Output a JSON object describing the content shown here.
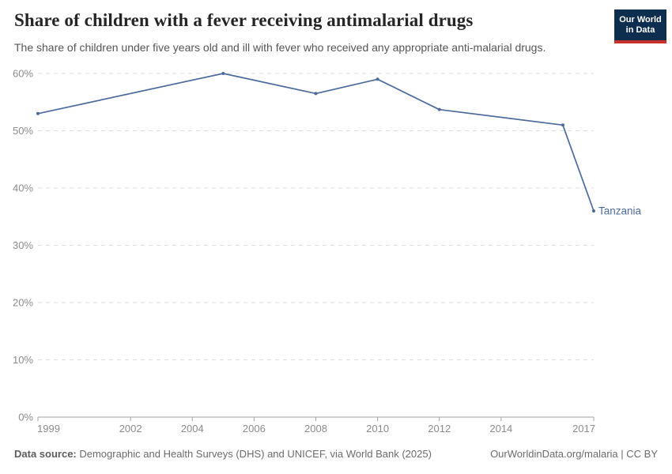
{
  "header": {
    "title": "Share of children with a fever receiving antimalarial drugs",
    "subtitle": "The share of children under five years old and ill with fever who received any appropriate anti-malarial drugs.",
    "logo": {
      "line1": "Our World",
      "line2": "in Data",
      "background_color": "#0d2e4e",
      "bar_color": "#c5312b"
    }
  },
  "chart_data": {
    "type": "line",
    "title": "Share of children with a fever receiving antimalarial drugs",
    "xlabel": "",
    "ylabel": "",
    "xlim": [
      1999,
      2017
    ],
    "ylim": [
      0,
      60
    ],
    "x_ticks": [
      1999,
      2002,
      2004,
      2006,
      2008,
      2010,
      2012,
      2014,
      2017
    ],
    "y_ticks": [
      0,
      10,
      20,
      30,
      40,
      50,
      60
    ],
    "y_tick_suffix": "%",
    "grid": "horizontal dashed gridlines on",
    "legend": "entity label at line end, right side",
    "series": [
      {
        "name": "Tanzania",
        "color": "#4C6A9C",
        "x": [
          1999,
          2005,
          2008,
          2010,
          2012,
          2016,
          2017
        ],
        "values": [
          53,
          60,
          56.5,
          59,
          53.7,
          51,
          36
        ]
      }
    ]
  },
  "footer": {
    "source_label": "Data source:",
    "source_text": " Demographic and Health Surveys (DHS) and UNICEF, via World Bank (2025)",
    "link": "OurWorldinData.org/malaria | CC BY"
  }
}
